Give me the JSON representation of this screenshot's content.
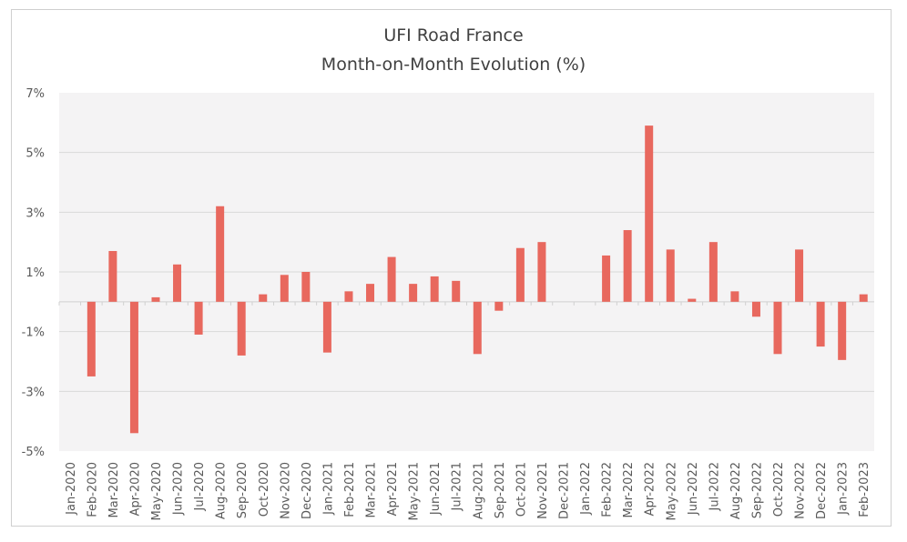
{
  "chart_data": {
    "type": "bar",
    "title": "UFI Road France",
    "subtitle": "Month-on-Month Evolution (%)",
    "xlabel": "",
    "ylabel": "",
    "ylim": [
      -5,
      7
    ],
    "yticks": [
      7,
      5,
      3,
      1,
      -1,
      -3,
      -5
    ],
    "ytick_labels": [
      "7%",
      "5%",
      "3%",
      "1%",
      "-1%",
      "-3%",
      "-5%"
    ],
    "grid": true,
    "bar_color": "#E8685E",
    "plot_background": "#F4F3F4",
    "categories": [
      "Jan-2020",
      "Feb-2020",
      "Mar-2020",
      "Apr-2020",
      "May-2020",
      "Jun-2020",
      "Jul-2020",
      "Aug-2020",
      "Sep-2020",
      "Oct-2020",
      "Nov-2020",
      "Dec-2020",
      "Jan-2021",
      "Feb-2021",
      "Mar-2021",
      "Apr-2021",
      "May-2021",
      "Jun-2021",
      "Jul-2021",
      "Aug-2021",
      "Sep-2021",
      "Oct-2021",
      "Nov-2021",
      "Dec-2021",
      "Jan-2022",
      "Feb-2022",
      "Mar-2022",
      "Apr-2022",
      "May-2022",
      "Jun-2022",
      "Jul-2022",
      "Aug-2022",
      "Sep-2022",
      "Oct-2022",
      "Nov-2022",
      "Dec-2022",
      "Jan-2023",
      "Feb-2023"
    ],
    "values": [
      0,
      -2.5,
      1.7,
      -4.4,
      0.15,
      1.25,
      -1.1,
      3.2,
      -1.8,
      0.25,
      0.9,
      1.0,
      -1.7,
      0.35,
      0.6,
      1.5,
      0.6,
      0.85,
      0.7,
      -1.75,
      -0.3,
      1.8,
      2.0,
      0,
      0,
      1.55,
      2.4,
      5.9,
      1.75,
      0.1,
      2.0,
      0.35,
      -0.5,
      -1.75,
      1.75,
      -1.5,
      -1.95,
      0.25
    ]
  }
}
